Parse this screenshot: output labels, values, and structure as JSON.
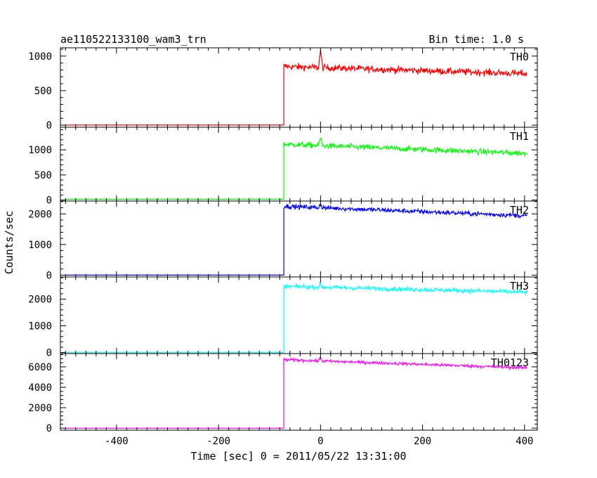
{
  "header": {
    "title": "ae110522133100_wam3_trn",
    "bin_time": "Bin time: 1.0 s"
  },
  "chart_data": {
    "type": "line",
    "xlabel": "Time [sec] 0 = 2011/05/22 13:31:00",
    "ylabel": "Counts/sec",
    "xlim": [
      -510,
      425
    ],
    "x_ticks": [
      -400,
      -200,
      0,
      200,
      400
    ],
    "trigger_time": -72,
    "data_end": 405,
    "peak_time": 0,
    "panels": [
      {
        "name": "TH0",
        "color": "#ff0000",
        "ylim": [
          -30,
          1120
        ],
        "y_ticks": [
          0,
          500,
          1000
        ],
        "pre_level": 2,
        "post_start": 850,
        "post_end": 745,
        "noise": 35,
        "peak_value": 1100
      },
      {
        "name": "TH1",
        "color": "#00ff00",
        "ylim": [
          -20,
          1450
        ],
        "y_ticks": [
          0,
          500,
          1000
        ],
        "pre_level": 15,
        "post_start": 1110,
        "post_end": 930,
        "noise": 40,
        "peak_value": 1270
      },
      {
        "name": "TH2",
        "color": "#0000ff",
        "ylim": [
          -60,
          2420
        ],
        "y_ticks": [
          0,
          1000,
          2000
        ],
        "pre_level": 0,
        "post_start": 2250,
        "post_end": 1940,
        "noise": 55,
        "peak_value": 2380
      },
      {
        "name": "TH3",
        "color": "#00ffff",
        "ylim": [
          -40,
          2830
        ],
        "y_ticks": [
          0,
          1000,
          2000
        ],
        "pre_level": 0,
        "post_start": 2480,
        "post_end": 2260,
        "noise": 55,
        "peak_value": 2600
      },
      {
        "name": "TH0123",
        "color": "#ff00ff",
        "ylim": [
          -200,
          7300
        ],
        "y_ticks": [
          0,
          2000,
          4000,
          6000
        ],
        "pre_level": 0,
        "post_start": 6700,
        "post_end": 5900,
        "noise": 100,
        "peak_value": 7000
      }
    ]
  }
}
